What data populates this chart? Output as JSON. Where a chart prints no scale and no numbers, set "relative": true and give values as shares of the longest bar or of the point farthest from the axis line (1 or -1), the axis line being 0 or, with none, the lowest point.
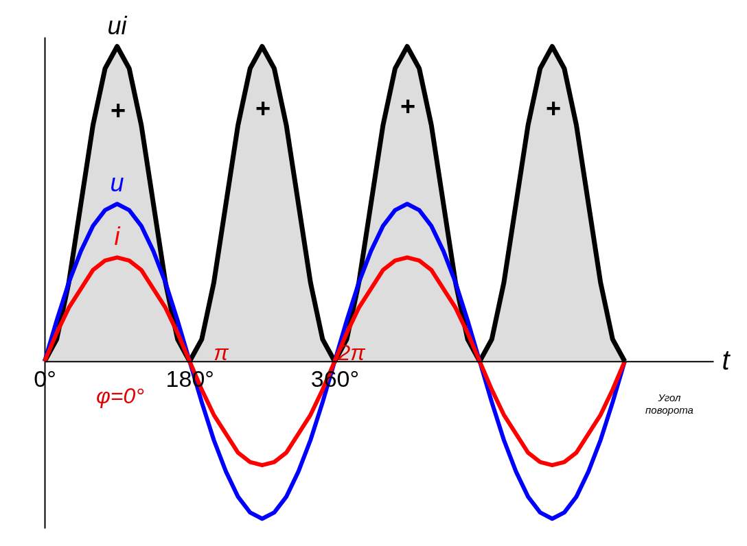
{
  "chart_data": {
    "type": "line",
    "relative": true,
    "xlabel": "t",
    "x": [
      0,
      15,
      30,
      45,
      60,
      75,
      90,
      105,
      120,
      135,
      150,
      165,
      180,
      195,
      210,
      225,
      240,
      255,
      270,
      285,
      300,
      315,
      330,
      345,
      360,
      375,
      390,
      405,
      420,
      435,
      450,
      465,
      480,
      495,
      510,
      525,
      540,
      555,
      570,
      585,
      600,
      615,
      630,
      645,
      660,
      675,
      690,
      705,
      720
    ],
    "xlim": [
      0,
      830
    ],
    "xticks": [
      {
        "value": 0,
        "label": "0°"
      },
      {
        "value": 180,
        "label": "180°"
      },
      {
        "value": 360,
        "label": "360°"
      }
    ],
    "series": [
      {
        "name": "ui",
        "type": "area",
        "color": "#000000",
        "values": [
          0,
          0.07,
          0.25,
          0.5,
          0.75,
          0.93,
          1,
          0.93,
          0.75,
          0.5,
          0.25,
          0.07,
          0,
          0.07,
          0.25,
          0.5,
          0.75,
          0.93,
          1,
          0.93,
          0.75,
          0.5,
          0.25,
          0.07,
          0,
          0.07,
          0.25,
          0.5,
          0.75,
          0.93,
          1,
          0.93,
          0.75,
          0.5,
          0.25,
          0.07,
          0,
          0.07,
          0.25,
          0.5,
          0.75,
          0.93,
          1,
          0.93,
          0.75,
          0.5,
          0.25,
          0.07,
          0
        ]
      },
      {
        "name": "u",
        "color": "#0000ff",
        "values": [
          0,
          0.13,
          0.25,
          0.35,
          0.43,
          0.48,
          0.5,
          0.48,
          0.43,
          0.35,
          0.25,
          0.13,
          0,
          -0.13,
          -0.25,
          -0.35,
          -0.43,
          -0.48,
          -0.5,
          -0.48,
          -0.43,
          -0.35,
          -0.25,
          -0.13,
          0,
          0.13,
          0.25,
          0.35,
          0.43,
          0.48,
          0.5,
          0.48,
          0.43,
          0.35,
          0.25,
          0.13,
          0,
          -0.13,
          -0.25,
          -0.35,
          -0.43,
          -0.48,
          -0.5,
          -0.48,
          -0.43,
          -0.35,
          -0.25,
          -0.13,
          0
        ]
      },
      {
        "name": "i",
        "color": "#ff0000",
        "values": [
          0,
          0.09,
          0.17,
          0.23,
          0.29,
          0.32,
          0.33,
          0.32,
          0.29,
          0.23,
          0.17,
          0.09,
          0,
          -0.09,
          -0.17,
          -0.23,
          -0.29,
          -0.32,
          -0.33,
          -0.32,
          -0.29,
          -0.23,
          -0.17,
          -0.09,
          0,
          0.09,
          0.17,
          0.23,
          0.29,
          0.32,
          0.33,
          0.32,
          0.29,
          0.23,
          0.17,
          0.09,
          0,
          -0.09,
          -0.17,
          -0.23,
          -0.29,
          -0.32,
          -0.33,
          -0.32,
          -0.29,
          -0.23,
          -0.17,
          -0.09,
          0
        ]
      }
    ],
    "annotations": [
      "+",
      "+",
      "+",
      "+",
      "π",
      "2π",
      "φ=0°",
      "Угол поворота"
    ],
    "grid": false,
    "line_style": "solid",
    "marker": "none"
  }
}
